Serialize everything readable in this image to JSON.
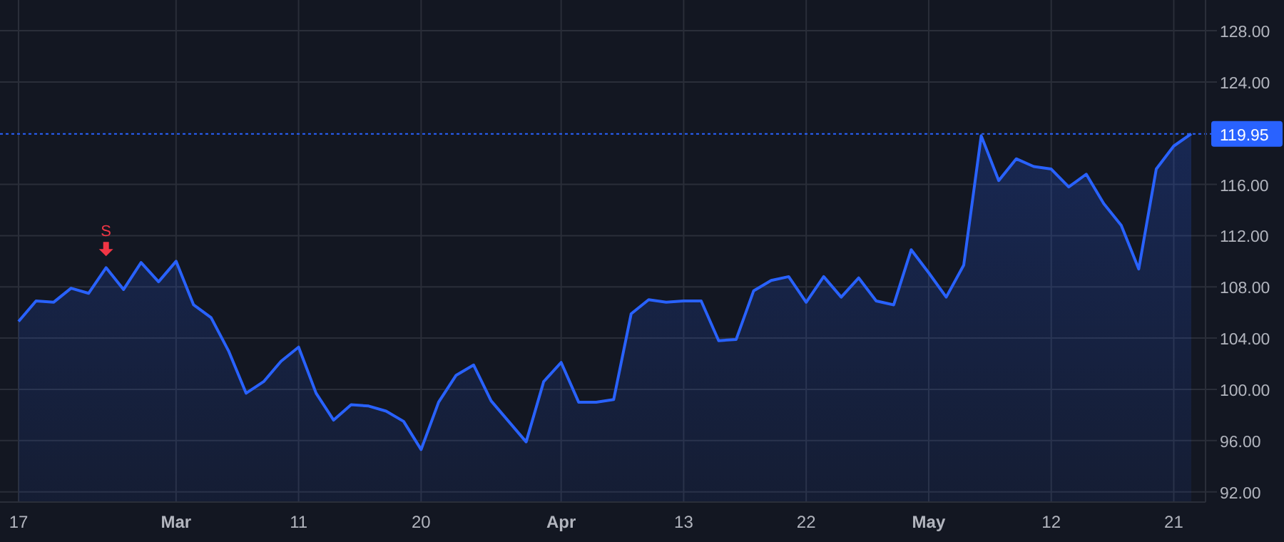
{
  "chart_data": {
    "type": "area",
    "categories": [
      "17",
      null,
      null,
      null,
      null,
      null,
      null,
      null,
      null,
      "Mar",
      null,
      null,
      null,
      null,
      null,
      null,
      "11",
      null,
      null,
      null,
      null,
      null,
      null,
      "20",
      null,
      null,
      null,
      null,
      null,
      null,
      null,
      "Apr",
      null,
      null,
      null,
      null,
      null,
      null,
      "13",
      null,
      null,
      null,
      null,
      null,
      null,
      "22",
      null,
      null,
      null,
      null,
      null,
      null,
      "May",
      null,
      null,
      null,
      null,
      null,
      null,
      "12",
      null,
      null,
      null,
      null,
      null,
      null,
      "21",
      null
    ],
    "series": [
      {
        "color": "#2962ff",
        "values": [
          105.3,
          106.9,
          106.8,
          107.9,
          107.5,
          109.5,
          107.8,
          109.9,
          108.4,
          110.0,
          106.6,
          105.6,
          103.0,
          99.7,
          100.6,
          102.2,
          103.3,
          99.7,
          97.6,
          98.8,
          98.7,
          98.3,
          97.5,
          95.3,
          99.0,
          101.1,
          101.9,
          99.1,
          97.5,
          95.9,
          100.6,
          102.1,
          99.0,
          99.0,
          99.2,
          105.9,
          107.0,
          106.8,
          106.9,
          106.9,
          103.8,
          103.9,
          107.7,
          108.5,
          108.8,
          106.8,
          108.8,
          107.2,
          108.7,
          106.9,
          106.6,
          110.9,
          109.1,
          107.2,
          109.7,
          119.8,
          116.3,
          118.0,
          117.4,
          117.2,
          115.8,
          116.8,
          114.5,
          112.8,
          109.4,
          117.2,
          119.0,
          119.95
        ]
      }
    ],
    "ylim": [
      91.2,
      130.4
    ],
    "yticks": [
      {
        "value": 92,
        "label": "92.00"
      },
      {
        "value": 96,
        "label": "96.00"
      },
      {
        "value": 100,
        "label": "100.00"
      },
      {
        "value": 104,
        "label": "104.00"
      },
      {
        "value": 108,
        "label": "108.00"
      },
      {
        "value": 112,
        "label": "112.00"
      },
      {
        "value": 116,
        "label": "116.00"
      },
      {
        "value": 124,
        "label": "124.00"
      },
      {
        "value": 128,
        "label": "128.00"
      }
    ],
    "grid": true,
    "ref_lines": [
      {
        "axis": "y",
        "value": 119.95,
        "label": "119.95",
        "color": "#2962ff",
        "line_style": "dotted"
      }
    ],
    "annotations": [
      {
        "text": "S",
        "y": 109.5
      }
    ]
  }
}
